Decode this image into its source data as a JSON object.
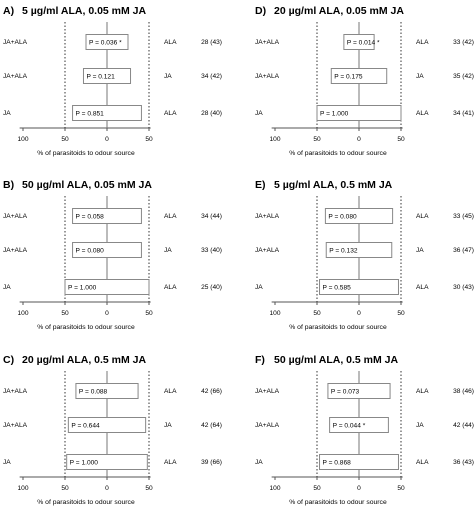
{
  "figure": {
    "xlabel": "% of parasitoids to odour source",
    "ticks": [
      {
        "value": -100,
        "label": "100"
      },
      {
        "value": -50,
        "label": "50"
      },
      {
        "value": 0,
        "label": "0"
      },
      {
        "value": 50,
        "label": "50"
      }
    ]
  },
  "chart_data": [
    {
      "type": "bar",
      "panel_label": "A)",
      "title": "5 µg/ml ALA, 0.05 mM JA",
      "xlabel": "% of parasitoids to odour source",
      "xlim": [
        -100,
        50
      ],
      "bars": [
        {
          "left": "JA+ALA",
          "right": "ALA",
          "value": 25,
          "p": "P = 0.036 *",
          "n": "28 (43)"
        },
        {
          "left": "JA+ALA",
          "right": "JA",
          "value": 28,
          "p": "P = 0.121",
          "n": "34 (42)"
        },
        {
          "left": "JA",
          "right": "ALA",
          "value": 41,
          "p": "P = 0.851",
          "n": "28 (40)"
        }
      ]
    },
    {
      "type": "bar",
      "panel_label": "D)",
      "title": "20 µg/ml ALA, 0.05 mM JA",
      "xlabel": "% of parasitoids to odour source",
      "xlim": [
        -100,
        50
      ],
      "bars": [
        {
          "left": "JA+ALA",
          "right": "ALA",
          "value": 18,
          "p": "P = 0.014 *",
          "n": "33 (42)"
        },
        {
          "left": "JA+ALA",
          "right": "JA",
          "value": 33,
          "p": "P = 0.175",
          "n": "35 (42)"
        },
        {
          "left": "JA",
          "right": "ALA",
          "value": 50,
          "p": "P = 1.000",
          "n": "34 (41)"
        }
      ]
    },
    {
      "type": "bar",
      "panel_label": "B)",
      "title": "50 µg/ml ALA, 0.05 mM JA",
      "xlabel": "% of parasitoids to odour source",
      "xlim": [
        -100,
        50
      ],
      "bars": [
        {
          "left": "JA+ALA",
          "right": "ALA",
          "value": 41,
          "p": "P = 0.058",
          "n": "34 (44)"
        },
        {
          "left": "JA+ALA",
          "right": "JA",
          "value": 41,
          "p": "P = 0.080",
          "n": "33 (40)"
        },
        {
          "left": "JA",
          "right": "ALA",
          "value": 50,
          "p": "P = 1.000",
          "n": "25 (40)"
        }
      ]
    },
    {
      "type": "bar",
      "panel_label": "E)",
      "title": "5 µg/ml ALA, 0.5 mM JA",
      "xlabel": "% of parasitoids to odour source",
      "xlim": [
        -100,
        50
      ],
      "bars": [
        {
          "left": "JA+ALA",
          "right": "ALA",
          "value": 40,
          "p": "P = 0.080",
          "n": "33 (45)"
        },
        {
          "left": "JA+ALA",
          "right": "JA",
          "value": 39,
          "p": "P = 0.132",
          "n": "36 (47)"
        },
        {
          "left": "JA",
          "right": "ALA",
          "value": 47,
          "p": "P = 0.585",
          "n": "30 (43)"
        }
      ]
    },
    {
      "type": "bar",
      "panel_label": "C)",
      "title": "20 µg/ml ALA, 0.5 mM JA",
      "xlabel": "% of parasitoids to odour source",
      "xlim": [
        -100,
        50
      ],
      "bars": [
        {
          "left": "JA+ALA",
          "right": "ALA",
          "value": 37,
          "p": "P = 0.088",
          "n": "42 (66)"
        },
        {
          "left": "JA+ALA",
          "right": "JA",
          "value": 46,
          "p": "P = 0.644",
          "n": "42 (64)"
        },
        {
          "left": "JA",
          "right": "ALA",
          "value": 48,
          "p": "P = 1.000",
          "n": "39 (66)"
        }
      ]
    },
    {
      "type": "bar",
      "panel_label": "F)",
      "title": "50 µg/ml ALA, 0.5 mM JA",
      "xlabel": "% of parasitoids to odour source",
      "xlim": [
        -100,
        50
      ],
      "bars": [
        {
          "left": "JA+ALA",
          "right": "ALA",
          "value": 37,
          "p": "P = 0.073",
          "n": "38 (46)"
        },
        {
          "left": "JA+ALA",
          "right": "JA",
          "value": 35,
          "p": "P = 0.044 *",
          "n": "42 (44)"
        },
        {
          "left": "JA",
          "right": "ALA",
          "value": 47,
          "p": "P = 0.868",
          "n": "36 (43)"
        }
      ]
    }
  ]
}
